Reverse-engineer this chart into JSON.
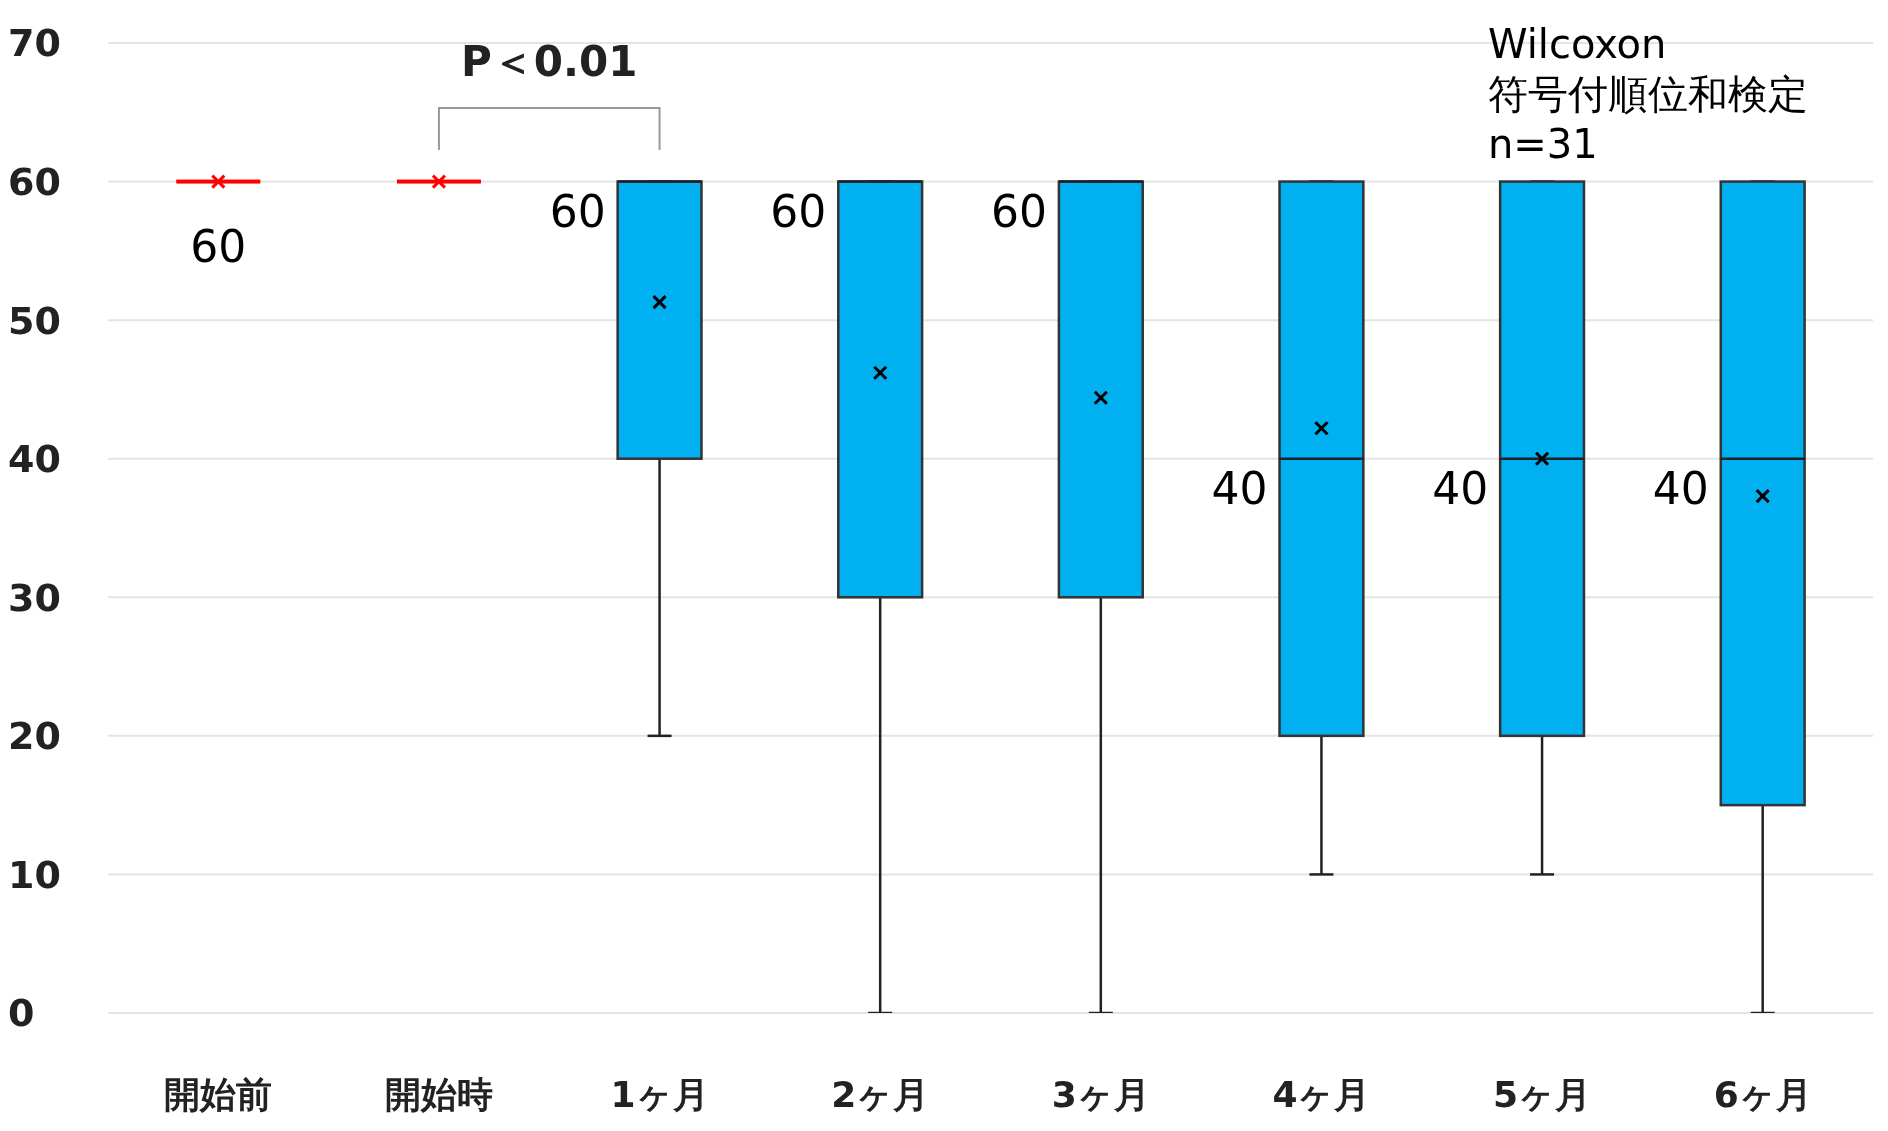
{
  "chart_data": {
    "type": "box",
    "categories": [
      "開始前",
      "開始時",
      "1ヶ月",
      "2ヶ月",
      "3ヶ月",
      "4ヶ月",
      "5ヶ月",
      "6ヶ月"
    ],
    "boxes": [
      {
        "low": 60,
        "q1": 60,
        "median": 60,
        "q3": 60,
        "high": 60,
        "mean": 60
      },
      {
        "low": 60,
        "q1": 60,
        "median": 60,
        "q3": 60,
        "high": 60,
        "mean": 60
      },
      {
        "low": 20,
        "q1": 40,
        "median": 60,
        "q3": 60,
        "high": 60,
        "mean": 51.3
      },
      {
        "low": 0,
        "q1": 30,
        "median": 60,
        "q3": 60,
        "high": 60,
        "mean": 46.2
      },
      {
        "low": 0,
        "q1": 30,
        "median": 60,
        "q3": 60,
        "high": 60,
        "mean": 44.4
      },
      {
        "low": 10,
        "q1": 20,
        "median": 40,
        "q3": 60,
        "high": 60,
        "mean": 42.2
      },
      {
        "low": 10,
        "q1": 20,
        "median": 40,
        "q3": 60,
        "high": 60,
        "mean": 40
      },
      {
        "low": 0,
        "q1": 15,
        "median": 40,
        "q3": 60,
        "high": 60,
        "mean": 37.3
      }
    ],
    "colors": [
      "#ff0000",
      "#ff0000",
      "#00b0f0",
      "#00b0f0",
      "#00b0f0",
      "#00b0f0",
      "#00b0f0",
      "#00b0f0"
    ],
    "ylim": [
      0,
      70
    ],
    "yticks": [
      0,
      10,
      20,
      30,
      40,
      50,
      60,
      70
    ],
    "grid": "y",
    "annotations": [
      {
        "text": "60",
        "x": "開始前",
        "y": 60
      },
      {
        "text": "60",
        "x": "1ヶ月",
        "y": 60
      },
      {
        "text": "60",
        "x": "2ヶ月",
        "y": 60
      },
      {
        "text": "60",
        "x": "3ヶ月",
        "y": 60
      },
      {
        "text": "40",
        "x": "4ヶ月",
        "y": 40
      },
      {
        "text": "40",
        "x": "5ヶ月",
        "y": 40
      },
      {
        "text": "40",
        "x": "6ヶ月",
        "y": 40
      },
      "P＜0.01",
      "Wilcoxon\n符号付順位和検定\nn=31"
    ]
  }
}
